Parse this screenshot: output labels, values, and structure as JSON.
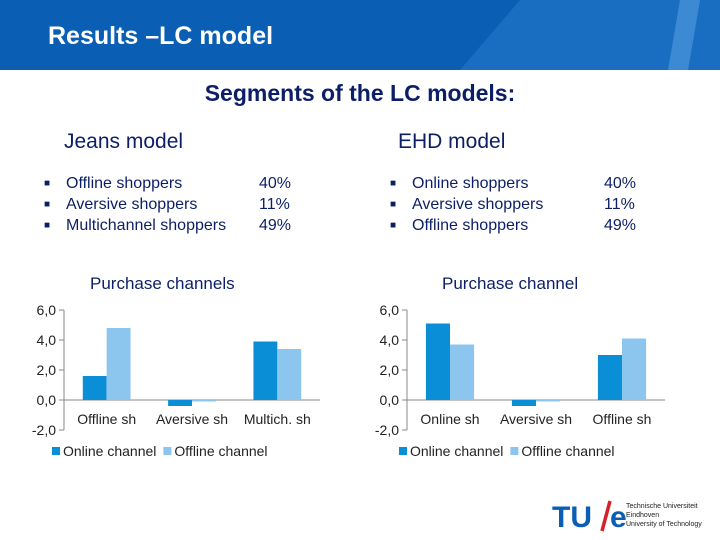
{
  "header": {
    "title": "Results –LC model"
  },
  "subtitle": "Segments of the LC models:",
  "jeans": {
    "title": "Jeans model",
    "segments": [
      {
        "label": "Offline shoppers",
        "pct": "40%"
      },
      {
        "label": "Aversive shoppers",
        "pct": "11%"
      },
      {
        "label": "Multichannel shoppers",
        "pct": "49%"
      }
    ],
    "chart_title": "Purchase channels"
  },
  "ehd": {
    "title": "EHD model",
    "segments": [
      {
        "label": "Online shoppers",
        "pct": "40%"
      },
      {
        "label": "Aversive shoppers",
        "pct": "11%"
      },
      {
        "label": "Offline shoppers",
        "pct": "49%"
      }
    ],
    "chart_title": "Purchase channel"
  },
  "colors": {
    "header": "#0a5fb4",
    "online": "#0a8fd6",
    "offline": "#8cc6ee",
    "text": "#0c1f66"
  },
  "logo": {
    "mark": "TU/e",
    "line1": "Technische Universiteit",
    "line2": "Eindhoven",
    "line3": "University of Technology"
  },
  "chart_data": [
    {
      "type": "bar",
      "categories": [
        "Offline sh",
        "Aversive sh",
        "Multich. sh"
      ],
      "series": [
        {
          "name": "Online channel",
          "values": [
            1.6,
            -0.4,
            3.9
          ]
        },
        {
          "name": "Offline channel",
          "values": [
            4.8,
            0.0,
            3.4
          ]
        }
      ],
      "ylim": [
        -2,
        6
      ],
      "yticks": [
        "6,0",
        "4,0",
        "2,0",
        "0,0",
        "-2,0"
      ],
      "legend": "bottom",
      "grid": false
    },
    {
      "type": "bar",
      "categories": [
        "Online sh",
        "Aversive sh",
        "Offline sh"
      ],
      "series": [
        {
          "name": "Online channel",
          "values": [
            5.1,
            -0.4,
            3.0
          ]
        },
        {
          "name": "Offline channel",
          "values": [
            3.7,
            -0.1,
            4.1
          ]
        }
      ],
      "ylim": [
        -2,
        6
      ],
      "yticks": [
        "6,0",
        "4,0",
        "2,0",
        "0,0",
        "-2,0"
      ],
      "legend": "bottom",
      "grid": false
    }
  ]
}
